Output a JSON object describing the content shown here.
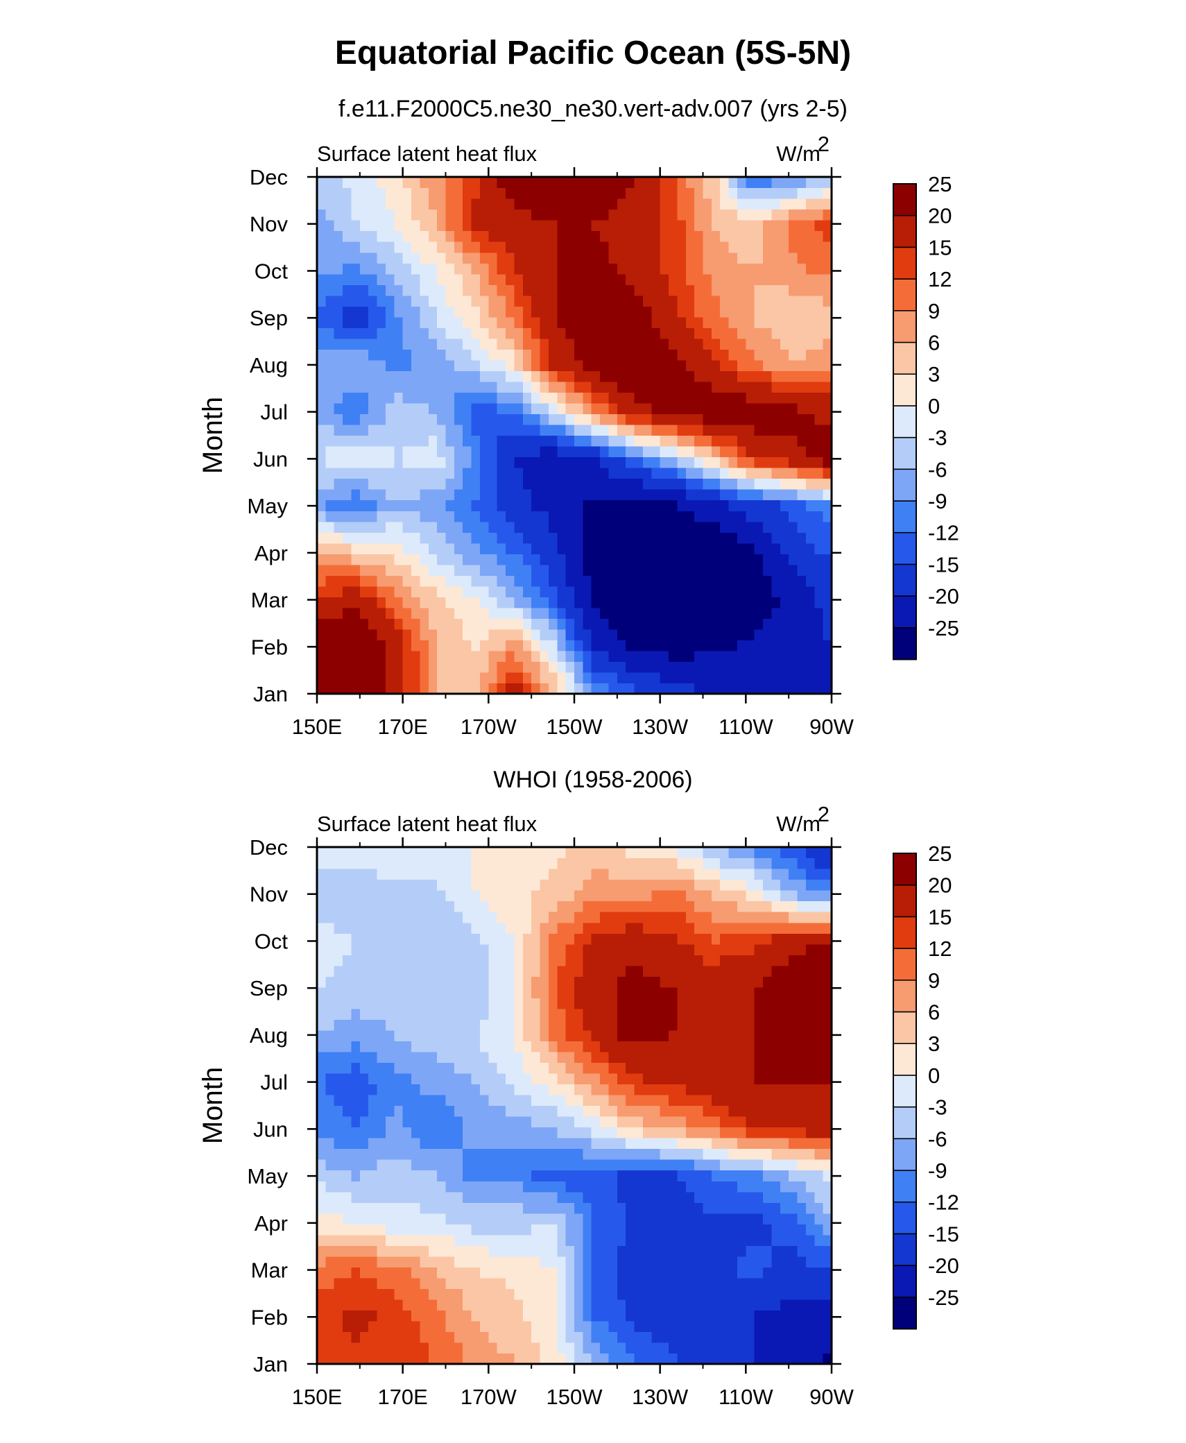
{
  "title": "Equatorial Pacific Ocean (5S-5N)",
  "colors": [
    "#00007a",
    "#0a19b4",
    "#1437d2",
    "#2659eb",
    "#4080f5",
    "#7ea6f7",
    "#b4cdf8",
    "#ddeafb",
    "#fde8d6",
    "#fbc6a5",
    "#f79b70",
    "#f46d38",
    "#e03c10",
    "#b81d05",
    "#8c0000"
  ],
  "chart_data": [
    {
      "type": "heatmap",
      "subtitle": "f.e11.F2000C5.ne30_ne30.vert-adv.007 (yrs 2-5)",
      "left_label": "Surface latent heat flux",
      "right_label": "W/m",
      "right_label_sup": "2",
      "ylabel": "Month",
      "x_ticks": [
        "150E",
        "170E",
        "170W",
        "150W",
        "130W",
        "110W",
        "90W"
      ],
      "y_ticks": [
        "Jan",
        "Feb",
        "Mar",
        "Apr",
        "May",
        "Jun",
        "Jul",
        "Aug",
        "Sep",
        "Oct",
        "Nov",
        "Dec"
      ],
      "x_range": [
        150,
        270
      ],
      "colorbar_levels": [
        "-25",
        "-20",
        "-15",
        "-12",
        "-9",
        "-6",
        "-3",
        "0",
        "3",
        "6",
        "9",
        "12",
        "15",
        "20",
        "25"
      ],
      "values": [
        [
          22,
          24,
          18,
          6,
          5,
          18,
          6,
          -8,
          -14,
          -18,
          -20,
          -22,
          -22,
          -24
        ],
        [
          26,
          28,
          18,
          6,
          3,
          8,
          -3,
          -20,
          -26,
          -27,
          -26,
          -24,
          -22,
          -20
        ],
        [
          16,
          18,
          10,
          4,
          0,
          -6,
          -14,
          -26,
          -30,
          -30,
          -30,
          -28,
          -24,
          -18
        ],
        [
          6,
          4,
          2,
          -4,
          -8,
          -12,
          -18,
          -28,
          -30,
          -30,
          -30,
          -26,
          -18,
          -14
        ],
        [
          -8,
          -12,
          -6,
          -8,
          -12,
          -18,
          -22,
          -26,
          -28,
          -26,
          -22,
          -18,
          -14,
          -10
        ],
        [
          -3,
          0,
          -3,
          -1,
          -10,
          -20,
          -24,
          -20,
          -12,
          -6,
          4,
          14,
          18,
          24
        ],
        [
          -6,
          -12,
          -4,
          -6,
          -14,
          -12,
          -2,
          8,
          18,
          22,
          24,
          24,
          22,
          18
        ],
        [
          -8,
          -6,
          -10,
          -8,
          -4,
          2,
          16,
          22,
          26,
          22,
          16,
          10,
          6,
          8
        ],
        [
          -12,
          -18,
          -10,
          -3,
          2,
          10,
          20,
          24,
          24,
          16,
          10,
          6,
          3,
          4
        ],
        [
          -8,
          -10,
          -5,
          0,
          6,
          15,
          20,
          22,
          18,
          14,
          8,
          6,
          8,
          10
        ],
        [
          -8,
          -3,
          0,
          6,
          16,
          18,
          20,
          20,
          18,
          14,
          6,
          4,
          10,
          14
        ],
        [
          -4,
          -2,
          2,
          8,
          14,
          24,
          28,
          26,
          20,
          12,
          4,
          -12,
          -10,
          -6
        ]
      ]
    },
    {
      "type": "heatmap",
      "subtitle": "WHOI (1958-2006)",
      "left_label": "Surface latent heat flux",
      "right_label": "W/m",
      "right_label_sup": "2",
      "ylabel": "Month",
      "x_ticks": [
        "150E",
        "170E",
        "170W",
        "150W",
        "130W",
        "110W",
        "90W"
      ],
      "y_ticks": [
        "Jan",
        "Feb",
        "Mar",
        "Apr",
        "May",
        "Jun",
        "Jul",
        "Aug",
        "Sep",
        "Oct",
        "Nov",
        "Dec"
      ],
      "x_range": [
        150,
        270
      ],
      "colorbar_levels": [
        "-25",
        "-20",
        "-15",
        "-12",
        "-9",
        "-6",
        "-3",
        "0",
        "3",
        "6",
        "9",
        "12",
        "15",
        "20",
        "25"
      ],
      "values": [
        [
          12,
          14,
          14,
          12,
          8,
          6,
          2,
          -6,
          -12,
          -14,
          -18,
          -20,
          -22,
          -26
        ],
        [
          14,
          16,
          14,
          10,
          6,
          4,
          0,
          -12,
          -16,
          -18,
          -18,
          -20,
          -22,
          -24
        ],
        [
          10,
          12,
          10,
          6,
          3,
          2,
          0,
          -14,
          -16,
          -16,
          -16,
          -14,
          -16,
          -16
        ],
        [
          2,
          0,
          -2,
          -2,
          -4,
          -4,
          -3,
          -12,
          -16,
          -16,
          -16,
          -16,
          -14,
          -6
        ],
        [
          -4,
          -6,
          -4,
          -6,
          -10,
          -10,
          -14,
          -14,
          -16,
          -16,
          -12,
          -10,
          -6,
          -2
        ],
        [
          -10,
          -12,
          -8,
          -12,
          -8,
          -8,
          -6,
          -2,
          4,
          6,
          10,
          15,
          16,
          18
        ],
        [
          -12,
          -14,
          -10,
          -8,
          -6,
          -2,
          2,
          8,
          14,
          16,
          18,
          20,
          20,
          20
        ],
        [
          -6,
          -8,
          -6,
          -4,
          -3,
          0,
          10,
          16,
          22,
          20,
          16,
          20,
          22,
          22
        ],
        [
          -3,
          -4,
          -4,
          -6,
          -5,
          0,
          12,
          18,
          22,
          20,
          18,
          20,
          24,
          28
        ],
        [
          -2,
          -3,
          -3,
          -6,
          -4,
          0,
          10,
          16,
          18,
          16,
          12,
          14,
          18,
          20
        ],
        [
          -4,
          -6,
          -4,
          -4,
          0,
          2,
          4,
          8,
          8,
          10,
          6,
          2,
          -6,
          -10
        ],
        [
          -2,
          -1,
          0,
          0,
          0,
          2,
          2,
          4,
          2,
          0,
          -6,
          -10,
          -14,
          -22
        ]
      ]
    }
  ]
}
